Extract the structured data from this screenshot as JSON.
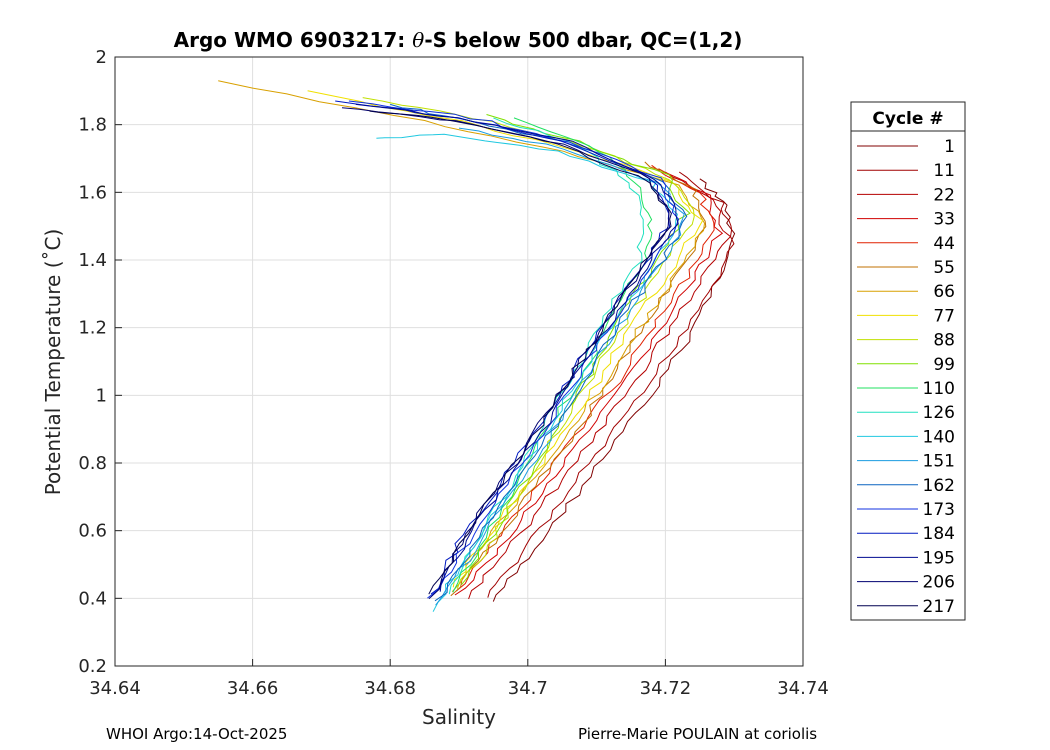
{
  "chart_data": {
    "type": "line",
    "title": "Argo WMO 6903217: θ-S below 500 dbar,  QC=(1,2)",
    "title_prefix": "Argo WMO 6903217: ",
    "title_theta": "θ",
    "title_suffix": "-S below 500 dbar,  QC=(1,2)",
    "xlabel": "Salinity",
    "ylabel": "Potential Temperature (˚C)",
    "xlim": [
      34.64,
      34.74
    ],
    "ylim": [
      0.2,
      2.0
    ],
    "xticks": [
      34.64,
      34.66,
      34.68,
      34.7,
      34.72,
      34.74
    ],
    "xtick_labels": [
      "34.64",
      "34.66",
      "34.68",
      "34.7",
      "34.72",
      "34.74"
    ],
    "yticks": [
      0.2,
      0.4,
      0.6,
      0.8,
      1.0,
      1.2,
      1.4,
      1.6,
      1.8,
      2.0
    ],
    "ytick_labels": [
      "0.2",
      "0.4",
      "0.6",
      "0.8",
      "1",
      "1.2",
      "1.4",
      "1.6",
      "1.8",
      "2"
    ],
    "grid": true,
    "legend_title": "Cycle #",
    "legend_position": "right",
    "series": [
      {
        "name": "1",
        "color": "#800000",
        "salinity": [
          34.695,
          34.7,
          34.706,
          34.712,
          34.718,
          34.723,
          34.727,
          34.73,
          34.729,
          34.725
        ],
        "theta": [
          0.39,
          0.52,
          0.68,
          0.84,
          1.0,
          1.16,
          1.32,
          1.46,
          1.56,
          1.64
        ]
      },
      {
        "name": "11",
        "color": "#a00000",
        "salinity": [
          34.694,
          34.699,
          34.705,
          34.711,
          34.717,
          34.722,
          34.727,
          34.73,
          34.728,
          34.722
        ],
        "theta": [
          0.4,
          0.53,
          0.69,
          0.85,
          1.01,
          1.17,
          1.33,
          1.47,
          1.57,
          1.66
        ]
      },
      {
        "name": "22",
        "color": "#b40000",
        "salinity": [
          34.691,
          34.697,
          34.703,
          34.709,
          34.715,
          34.72,
          34.725,
          34.729,
          34.727,
          34.72
        ],
        "theta": [
          0.4,
          0.54,
          0.7,
          0.86,
          1.02,
          1.18,
          1.33,
          1.47,
          1.58,
          1.66
        ]
      },
      {
        "name": "33",
        "color": "#d00000",
        "salinity": [
          34.69,
          34.696,
          34.702,
          34.708,
          34.714,
          34.719,
          34.724,
          34.728,
          34.726,
          34.719
        ],
        "theta": [
          0.41,
          0.55,
          0.71,
          0.87,
          1.03,
          1.19,
          1.34,
          1.48,
          1.59,
          1.67
        ]
      },
      {
        "name": "44",
        "color": "#e02000",
        "salinity": [
          34.69,
          34.695,
          34.701,
          34.707,
          34.713,
          34.718,
          34.723,
          34.727,
          34.725,
          34.718
        ],
        "theta": [
          0.42,
          0.56,
          0.72,
          0.88,
          1.04,
          1.2,
          1.35,
          1.49,
          1.6,
          1.68
        ]
      },
      {
        "name": "55",
        "color": "#c07000",
        "salinity": [
          34.689,
          34.695,
          34.701,
          34.707,
          34.712,
          34.717,
          34.722,
          34.726,
          34.724,
          34.717
        ],
        "theta": [
          0.41,
          0.56,
          0.73,
          0.89,
          1.05,
          1.21,
          1.36,
          1.5,
          1.61,
          1.69
        ]
      },
      {
        "name": "66",
        "color": "#d8a000",
        "salinity": [
          34.689,
          34.694,
          34.7,
          34.706,
          34.712,
          34.717,
          34.722,
          34.726,
          34.722,
          34.705,
          34.685,
          34.655
        ],
        "theta": [
          0.42,
          0.57,
          0.73,
          0.9,
          1.06,
          1.22,
          1.37,
          1.51,
          1.62,
          1.72,
          1.81,
          1.93
        ]
      },
      {
        "name": "77",
        "color": "#f0e000",
        "salinity": [
          34.689,
          34.694,
          34.7,
          34.706,
          34.711,
          34.716,
          34.721,
          34.725,
          34.721,
          34.706,
          34.69,
          34.668
        ],
        "theta": [
          0.43,
          0.58,
          0.74,
          0.91,
          1.07,
          1.23,
          1.38,
          1.52,
          1.63,
          1.73,
          1.81,
          1.9
        ]
      },
      {
        "name": "88",
        "color": "#c0e000",
        "salinity": [
          34.69,
          34.695,
          34.7,
          34.705,
          34.71,
          34.715,
          34.72,
          34.724,
          34.721,
          34.708,
          34.692,
          34.676
        ],
        "theta": [
          0.43,
          0.58,
          0.75,
          0.92,
          1.08,
          1.24,
          1.39,
          1.53,
          1.64,
          1.74,
          1.82,
          1.88
        ]
      },
      {
        "name": "99",
        "color": "#80e000",
        "salinity": [
          34.69,
          34.695,
          34.7,
          34.705,
          34.71,
          34.714,
          34.719,
          34.723,
          34.72,
          34.707,
          34.694
        ],
        "theta": [
          0.44,
          0.59,
          0.76,
          0.93,
          1.09,
          1.25,
          1.4,
          1.54,
          1.65,
          1.75,
          1.83
        ]
      },
      {
        "name": "110",
        "color": "#20e060",
        "salinity": [
          34.689,
          34.694,
          34.699,
          34.704,
          34.709,
          34.713,
          34.717,
          34.718,
          34.716,
          34.709,
          34.698
        ],
        "theta": [
          0.42,
          0.58,
          0.76,
          0.94,
          1.1,
          1.26,
          1.4,
          1.52,
          1.63,
          1.74,
          1.82
        ]
      },
      {
        "name": "126",
        "color": "#20e0c0",
        "salinity": [
          34.688,
          34.693,
          34.698,
          34.703,
          34.708,
          34.712,
          34.716,
          34.717,
          34.715,
          34.707,
          34.695
        ],
        "theta": [
          0.41,
          0.58,
          0.76,
          0.94,
          1.1,
          1.26,
          1.4,
          1.52,
          1.63,
          1.74,
          1.82
        ]
      },
      {
        "name": "140",
        "color": "#20c8e0",
        "salinity": [
          34.686,
          34.691,
          34.697,
          34.703,
          34.708,
          34.713,
          34.718,
          34.722,
          34.718,
          34.704,
          34.688,
          34.678
        ],
        "theta": [
          0.36,
          0.52,
          0.71,
          0.9,
          1.07,
          1.23,
          1.38,
          1.52,
          1.63,
          1.72,
          1.77,
          1.76
        ]
      },
      {
        "name": "151",
        "color": "#1a9ce0",
        "salinity": [
          34.687,
          34.692,
          34.698,
          34.704,
          34.709,
          34.714,
          34.719,
          34.723,
          34.719,
          34.705,
          34.69
        ],
        "theta": [
          0.38,
          0.54,
          0.72,
          0.9,
          1.07,
          1.23,
          1.38,
          1.52,
          1.63,
          1.73,
          1.79
        ]
      },
      {
        "name": "162",
        "color": "#0a64c0",
        "salinity": [
          34.687,
          34.692,
          34.698,
          34.704,
          34.709,
          34.714,
          34.719,
          34.723,
          34.72,
          34.707,
          34.692,
          34.68
        ],
        "theta": [
          0.39,
          0.55,
          0.73,
          0.91,
          1.07,
          1.23,
          1.38,
          1.51,
          1.63,
          1.74,
          1.81,
          1.86
        ]
      },
      {
        "name": "173",
        "color": "#1030e0",
        "salinity": [
          34.686,
          34.691,
          34.697,
          34.703,
          34.708,
          34.713,
          34.718,
          34.722,
          34.719,
          34.706,
          34.692,
          34.674
        ],
        "theta": [
          0.4,
          0.56,
          0.74,
          0.91,
          1.08,
          1.24,
          1.39,
          1.52,
          1.64,
          1.75,
          1.82,
          1.87
        ]
      },
      {
        "name": "184",
        "color": "#0018c0",
        "salinity": [
          34.686,
          34.69,
          34.696,
          34.702,
          34.707,
          34.712,
          34.717,
          34.721,
          34.718,
          34.705,
          34.69,
          34.672
        ],
        "theta": [
          0.41,
          0.56,
          0.74,
          0.92,
          1.08,
          1.24,
          1.39,
          1.52,
          1.64,
          1.75,
          1.82,
          1.87
        ]
      },
      {
        "name": "195",
        "color": "#000a90",
        "salinity": [
          34.687,
          34.691,
          34.697,
          34.703,
          34.708,
          34.713,
          34.718,
          34.722,
          34.719,
          34.706,
          34.69,
          34.675
        ],
        "theta": [
          0.42,
          0.57,
          0.75,
          0.92,
          1.09,
          1.25,
          1.4,
          1.53,
          1.64,
          1.75,
          1.82,
          1.86
        ]
      },
      {
        "name": "206",
        "color": "#000070",
        "salinity": [
          34.686,
          34.69,
          34.696,
          34.702,
          34.707,
          34.712,
          34.717,
          34.721,
          34.718,
          34.705,
          34.69,
          34.673
        ],
        "theta": [
          0.4,
          0.56,
          0.74,
          0.92,
          1.08,
          1.24,
          1.39,
          1.52,
          1.64,
          1.74,
          1.81,
          1.85
        ]
      },
      {
        "name": "217",
        "color": "#000050",
        "salinity": [
          34.686,
          34.69,
          34.696,
          34.702,
          34.707,
          34.712,
          34.717,
          34.721,
          34.718,
          34.705,
          34.69,
          34.677
        ],
        "theta": [
          0.41,
          0.56,
          0.74,
          0.91,
          1.08,
          1.24,
          1.39,
          1.52,
          1.63,
          1.74,
          1.81,
          1.84
        ]
      }
    ]
  },
  "footer": {
    "left": "WHOI Argo:14-Oct-2025",
    "right": "Pierre-Marie POULAIN at coriolis"
  }
}
